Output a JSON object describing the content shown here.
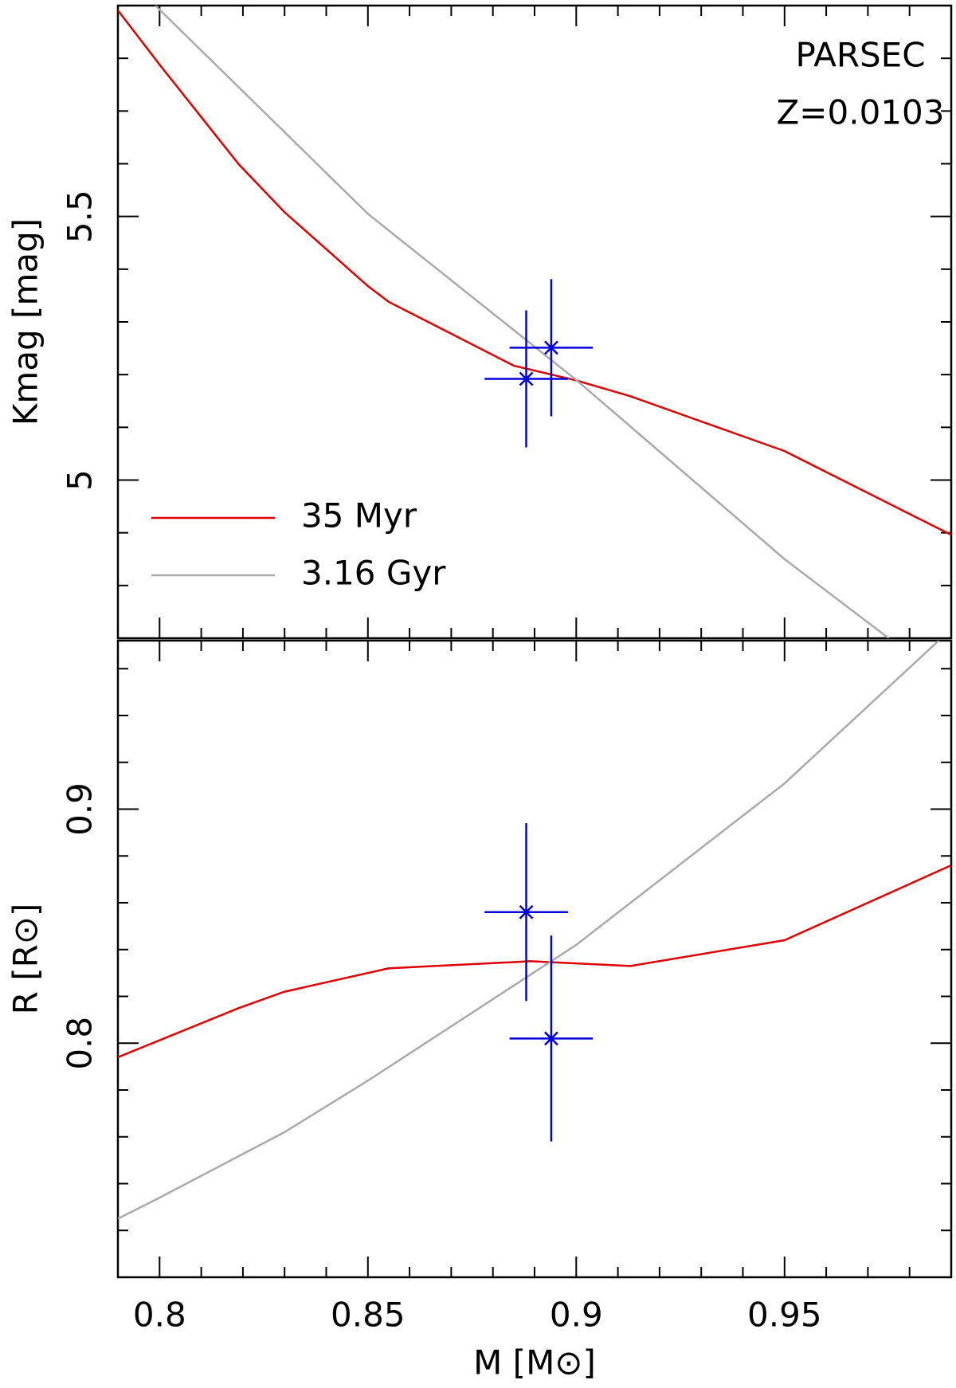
{
  "chart_data": [
    {
      "type": "line",
      "annotations": [
        "PARSEC",
        "Z=0.0103"
      ],
      "y_label": "Kmag [mag]",
      "xlim": [
        0.79,
        0.99
      ],
      "ylim": [
        4.7,
        5.9
      ],
      "yticks": [
        5,
        5.5
      ],
      "yminor_ticks": [
        4.8,
        4.9,
        5.1,
        5.2,
        5.3,
        5.4,
        5.6,
        5.7,
        5.8
      ],
      "legend": "lower left",
      "series": [
        {
          "name": "35 Myr",
          "color": "#e00000",
          "x": [
            0.79,
            0.8,
            0.819,
            0.83,
            0.85,
            0.855,
            0.885,
            0.9,
            0.913,
            0.95,
            0.99
          ],
          "values": [
            5.891,
            5.788,
            5.599,
            5.508,
            5.368,
            5.338,
            5.217,
            5.189,
            5.159,
            5.055,
            4.896
          ]
        },
        {
          "name": "3.16 Gyr",
          "color": "#aaaaaa",
          "x": [
            0.799,
            0.85,
            0.9,
            0.95,
            0.975
          ],
          "values": [
            5.9,
            5.505,
            5.19,
            4.85,
            4.7
          ]
        }
      ],
      "points": {
        "color": "#0000dd",
        "x": [
          0.888,
          0.894
        ],
        "values": [
          5.192,
          5.251
        ],
        "xerr": [
          0.01,
          0.01
        ],
        "yerr": [
          0.13,
          0.13
        ]
      }
    },
    {
      "type": "line",
      "x_label": "M [M⊙]",
      "y_label": "R [R⊙]",
      "xlim": [
        0.79,
        0.99
      ],
      "ylim": [
        0.7,
        0.972
      ],
      "xticks": [
        0.8,
        0.85,
        0.9,
        0.95
      ],
      "xminor_ticks": [
        0.79,
        0.81,
        0.82,
        0.83,
        0.84,
        0.86,
        0.87,
        0.88,
        0.89,
        0.91,
        0.92,
        0.93,
        0.94,
        0.96,
        0.97,
        0.98
      ],
      "yticks": [
        0.8,
        0.9
      ],
      "yminor_ticks": [
        0.72,
        0.74,
        0.76,
        0.78,
        0.82,
        0.84,
        0.86,
        0.88,
        0.92,
        0.94,
        0.96
      ],
      "series": [
        {
          "name": "35 Myr",
          "color": "#e00000",
          "x": [
            0.79,
            0.819,
            0.83,
            0.855,
            0.889,
            0.913,
            0.95,
            0.99
          ],
          "values": [
            0.794,
            0.815,
            0.822,
            0.832,
            0.835,
            0.833,
            0.844,
            0.876
          ]
        },
        {
          "name": "3.16 Gyr",
          "color": "#aaaaaa",
          "x": [
            0.79,
            0.8,
            0.83,
            0.85,
            0.9,
            0.95,
            0.987
          ],
          "values": [
            0.725,
            0.734,
            0.762,
            0.784,
            0.842,
            0.911,
            0.972
          ]
        }
      ],
      "points": {
        "color": "#0000dd",
        "x": [
          0.888,
          0.894
        ],
        "values": [
          0.856,
          0.802
        ],
        "xerr": [
          0.01,
          0.01
        ],
        "yerr": [
          0.038,
          0.044
        ]
      }
    }
  ]
}
